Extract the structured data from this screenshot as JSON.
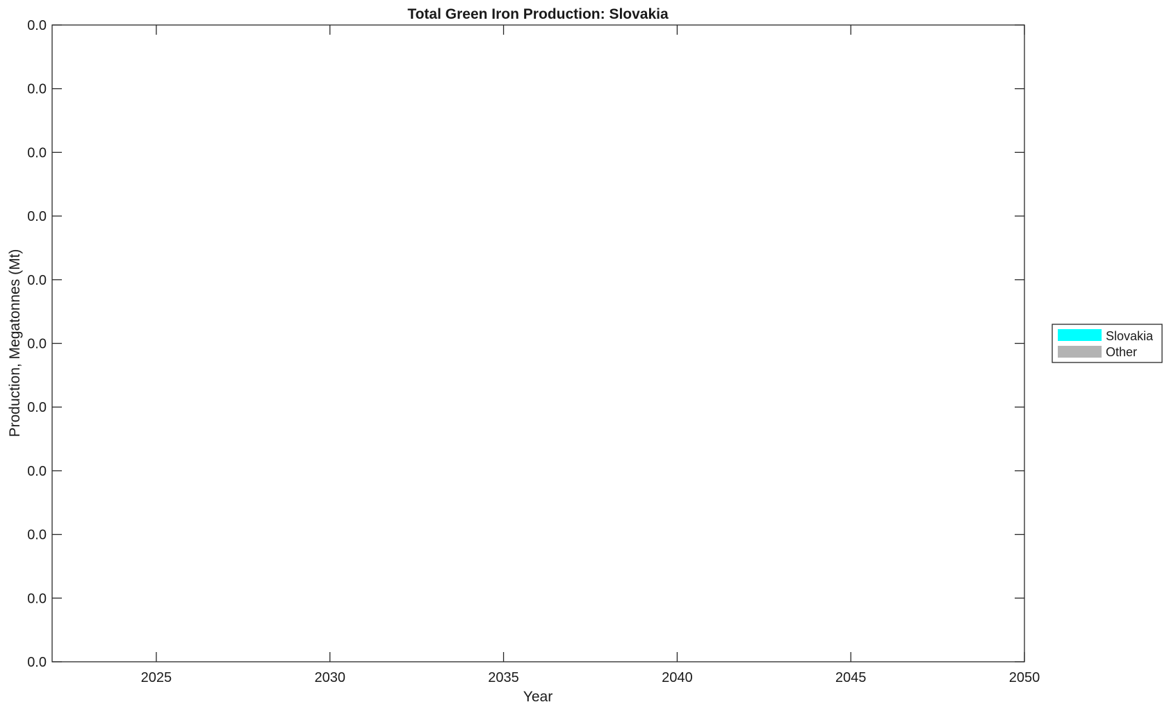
{
  "chart_data": {
    "type": "area",
    "title": "Total Green Iron Production: Slovakia",
    "xlabel": "Year",
    "ylabel": "Production, Megatonnes (Mt)",
    "xlim": [
      2022,
      2050
    ],
    "ylim": [
      0,
      1
    ],
    "x_ticks": [
      2025,
      2030,
      2035,
      2040,
      2045,
      2050
    ],
    "x_tick_labels": [
      "2025",
      "2030",
      "2035",
      "2040",
      "2045",
      "2050"
    ],
    "y_tick_labels": [
      "0.0",
      "0.0",
      "0.0",
      "0.0",
      "0.0",
      "0.0",
      "0.0",
      "0.0",
      "0.0",
      "0.0",
      "0.0"
    ],
    "grid": false,
    "legend_position": "right-outside",
    "series": [
      {
        "name": "Slovakia",
        "color": "#00ffff",
        "values": []
      },
      {
        "name": "Other",
        "color": "#b3b3b3",
        "values": []
      }
    ]
  }
}
